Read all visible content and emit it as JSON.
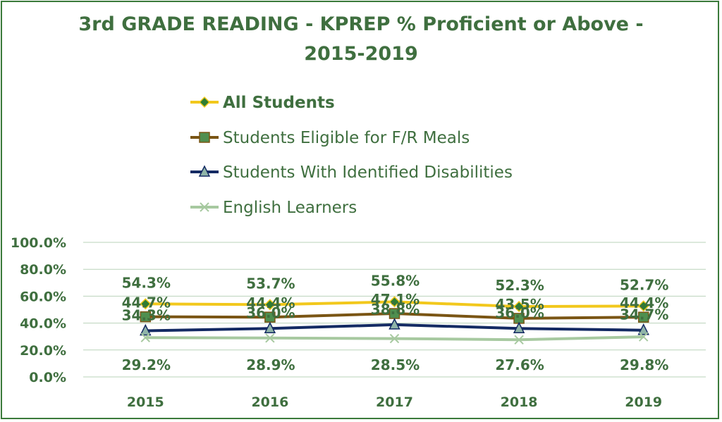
{
  "chart_data": {
    "type": "line",
    "title_line1": "3rd GRADE READING - KPREP % Proficient or Above -",
    "title_line2": "2015-2019",
    "categories": [
      "2015",
      "2016",
      "2017",
      "2018",
      "2019"
    ],
    "yticks": [
      "0.0%",
      "20.0%",
      "40.0%",
      "60.0%",
      "80.0%",
      "100.0%"
    ],
    "ylim": [
      0,
      100
    ],
    "grid": true,
    "legend_position": "top",
    "series": [
      {
        "name": "All Students",
        "values": [
          54.3,
          53.7,
          55.8,
          52.3,
          52.7
        ],
        "labels": [
          "54.3%",
          "53.7%",
          "55.8%",
          "52.3%",
          "52.7%"
        ],
        "color": "#f2c81c",
        "marker": "diamond",
        "marker_fill": "#2e7d32",
        "legend_bold": true
      },
      {
        "name": "Students Eligible for F/R Meals",
        "values": [
          44.7,
          44.4,
          47.1,
          43.5,
          44.4
        ],
        "labels": [
          "44.7%",
          "44.4%",
          "47.1%",
          "43.5%",
          "44.4%"
        ],
        "color": "#7a5514",
        "marker": "square",
        "marker_fill": "#4f8f4f",
        "legend_bold": false
      },
      {
        "name": "Students With Identified Disabilities",
        "values": [
          34.3,
          36.0,
          38.8,
          36.0,
          34.7
        ],
        "labels": [
          "34.3%",
          "36.0%",
          "38.8%",
          "36.0%",
          "34.7%"
        ],
        "color": "#132a63",
        "marker": "triangle",
        "marker_fill": "#8fb4a8",
        "legend_bold": false
      },
      {
        "name": "English Learners",
        "values": [
          29.2,
          28.9,
          28.5,
          27.6,
          29.8
        ],
        "labels": [
          "29.2%",
          "28.9%",
          "28.5%",
          "27.6%",
          "29.8%"
        ],
        "color": "#a7c9a0",
        "marker": "x",
        "marker_fill": "#a7c9a0",
        "legend_bold": false
      }
    ]
  },
  "colors": {
    "text": "#3f6f3f",
    "grid": "#b9d3b9",
    "border": "#3a7a3a"
  }
}
